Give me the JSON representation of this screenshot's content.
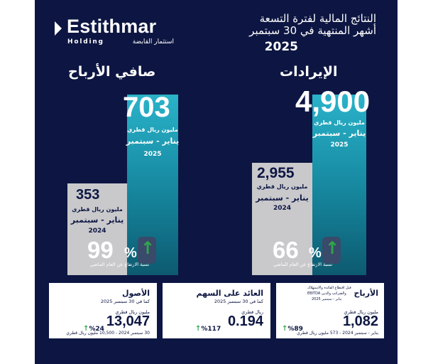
{
  "brand": {
    "name": "Estithmar",
    "holding": "Holding",
    "arabic": "استثمار القابضة"
  },
  "header": {
    "line1": "النتائج المالية لفترة التسعة",
    "line2": "أشهر المنتهية في 30 سبتمبر",
    "year": "2025"
  },
  "net_profit": {
    "title": "صافي الأرباح",
    "current": {
      "value": "703",
      "unit": "مليون ريال قطري",
      "period": "يناير - سبتمبر",
      "year": "2025"
    },
    "previous": {
      "value": "353",
      "unit": "مليون ريال قطري",
      "period": "يناير - سبتمبر",
      "year": "2024"
    },
    "growth": {
      "value": "99",
      "symbol": "%",
      "arrow": "↑",
      "caption": "نسبة الارتفاع عن العام الماضي"
    }
  },
  "revenue": {
    "title": "الإيرادات",
    "current": {
      "value": "4,900",
      "unit": "مليون ريال قطري",
      "period": "يناير - سبتمبر",
      "year": "2025"
    },
    "previous": {
      "value": "2,955",
      "unit": "مليون ريال قطري",
      "period": "يناير - سبتمبر",
      "year": "2024"
    },
    "growth": {
      "value": "66",
      "symbol": "%",
      "arrow": "↑",
      "caption": "نسبة الارتفاع عن العام الماضي"
    }
  },
  "cards": {
    "assets": {
      "title": "الأصول",
      "subtitle": "كما في 30 سبتمبر 2025",
      "unit": "مليون ريال قطري",
      "value": "13,047",
      "change": "24",
      "change_symbol": "%",
      "arrow": "↑",
      "footnote": "30 سبتمبر 2024 - 10,500 مليون ريال قطري"
    },
    "roe": {
      "title": "العائد على السهم",
      "subtitle": "كما في 30 سبتمبر 2025",
      "unit": "ريال قطري",
      "value": "0.194",
      "change": "117",
      "change_symbol": "%",
      "arrow": "↑"
    },
    "ebitda": {
      "title": "الأرباح",
      "desc1": "قبل اقتطاع الفائدة والاستهلاك",
      "desc2": "والضرائب والدين EBITDA",
      "desc3": "يناير - سبتمبر 2025",
      "unit": "مليون ريال قطري",
      "value": "1,082",
      "change": "89",
      "change_symbol": "%",
      "arrow": "↑",
      "footnote": "يناير - سبتمبر 2024 - 573 مليون ريال قطري"
    }
  },
  "colors": {
    "background": "#0d1642",
    "teal": "#1c96ae",
    "grey": "#c9c9cc",
    "up_arrow": "#2fa84a"
  }
}
